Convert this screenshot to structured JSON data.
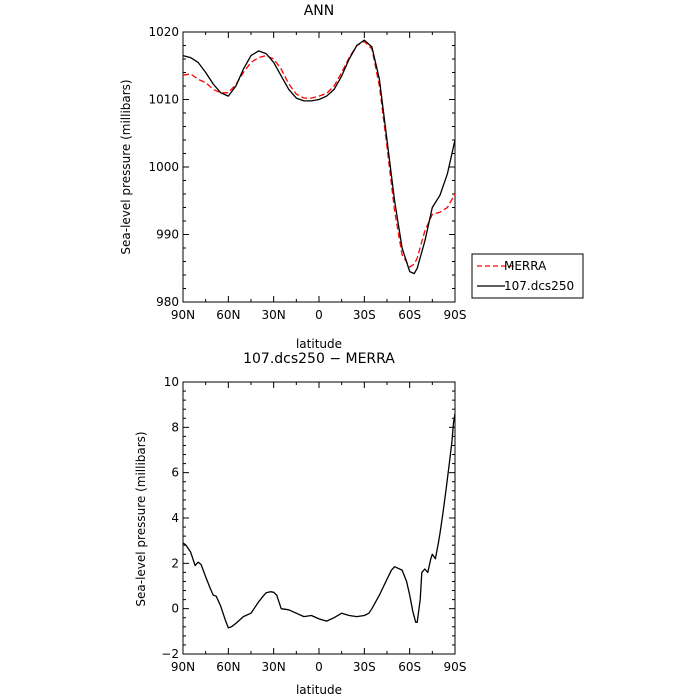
{
  "chart_data": [
    {
      "type": "line",
      "title": "ANN",
      "xlabel": "latitude",
      "ylabel": "Sea-level pressure (millibars)",
      "xlim": [
        90,
        -90
      ],
      "ylim": [
        980,
        1020
      ],
      "xtick_values": [
        90,
        60,
        30,
        0,
        -30,
        -60,
        -90
      ],
      "xtick_labels": [
        "90N",
        "60N",
        "30N",
        "0",
        "30S",
        "60S",
        "90S"
      ],
      "ytick_values": [
        980,
        990,
        1000,
        1010,
        1020
      ],
      "ytick_labels": [
        "980",
        "990",
        "1000",
        "1010",
        "1020"
      ],
      "grid": false,
      "legend_position": "right",
      "series": [
        {
          "name": "MERRA",
          "color": "#ff0000",
          "dash": "dashed",
          "x": [
            90,
            85,
            80,
            75,
            70,
            65,
            60,
            55,
            50,
            45,
            40,
            35,
            30,
            25,
            20,
            15,
            10,
            5,
            0,
            -5,
            -10,
            -15,
            -20,
            -25,
            -30,
            -35,
            -40,
            -45,
            -50,
            -55,
            -60,
            -63,
            -65,
            -70,
            -75,
            -80,
            -85,
            -90
          ],
          "y": [
            1013.6,
            1013.8,
            1013.0,
            1012.5,
            1011.5,
            1011.0,
            1011.0,
            1012.2,
            1014.0,
            1015.5,
            1016.2,
            1016.5,
            1016.0,
            1014.5,
            1012.3,
            1010.8,
            1010.2,
            1010.2,
            1010.5,
            1010.9,
            1012.0,
            1014.0,
            1016.2,
            1018.0,
            1018.6,
            1017.5,
            1012.0,
            1003.0,
            993.5,
            987.0,
            985.2,
            985.6,
            986.5,
            990.5,
            993.0,
            993.3,
            994.0,
            996.0
          ]
        },
        {
          "name": "107.dcs250",
          "color": "#000000",
          "dash": "solid",
          "x": [
            90,
            85,
            80,
            75,
            70,
            65,
            60,
            55,
            50,
            45,
            40,
            35,
            30,
            25,
            20,
            15,
            10,
            5,
            0,
            -5,
            -10,
            -15,
            -20,
            -25,
            -30,
            -35,
            -40,
            -45,
            -50,
            -55,
            -60,
            -63,
            -65,
            -70,
            -75,
            -80,
            -85,
            -90
          ],
          "y": [
            1016.5,
            1016.2,
            1015.5,
            1014.0,
            1012.3,
            1011.0,
            1010.5,
            1012.0,
            1014.5,
            1016.5,
            1017.2,
            1016.8,
            1015.5,
            1013.5,
            1011.5,
            1010.2,
            1009.8,
            1009.8,
            1010.0,
            1010.5,
            1011.5,
            1013.5,
            1016.0,
            1018.0,
            1018.8,
            1017.8,
            1013.0,
            1004.0,
            995.0,
            988.0,
            984.5,
            984.2,
            985.0,
            989.0,
            994.0,
            995.8,
            999.0,
            1004.0
          ]
        }
      ]
    },
    {
      "type": "line",
      "title": "107.dcs250 − MERRA",
      "xlabel": "latitude",
      "ylabel": "Sea-level pressure (millibars)",
      "xlim": [
        90,
        -90
      ],
      "ylim": [
        -2,
        10
      ],
      "xtick_values": [
        90,
        60,
        30,
        0,
        -30,
        -60,
        -90
      ],
      "xtick_labels": [
        "90N",
        "60N",
        "30N",
        "0",
        "30S",
        "60S",
        "90S"
      ],
      "ytick_values": [
        -2,
        0,
        2,
        4,
        6,
        8,
        10
      ],
      "ytick_labels": [
        "−2",
        "0",
        "2",
        "4",
        "6",
        "8",
        "10"
      ],
      "grid": false,
      "series": [
        {
          "color": "#000000",
          "dash": "solid",
          "x": [
            90,
            88,
            85,
            82,
            80,
            78,
            75,
            72,
            70,
            68,
            65,
            62,
            60,
            58,
            55,
            50,
            45,
            40,
            37,
            35,
            32,
            30,
            28,
            25,
            20,
            15,
            10,
            5,
            0,
            -5,
            -10,
            -15,
            -20,
            -25,
            -30,
            -33,
            -35,
            -40,
            -45,
            -48,
            -50,
            -55,
            -58,
            -60,
            -62,
            -64,
            -65,
            -67,
            -68,
            -70,
            -72,
            -74,
            -75,
            -77,
            -79,
            -80,
            -82,
            -84,
            -86,
            -88,
            -89,
            -90
          ],
          "y": [
            2.9,
            2.8,
            2.5,
            1.9,
            2.05,
            1.95,
            1.4,
            0.9,
            0.6,
            0.55,
            0.1,
            -0.5,
            -0.85,
            -0.8,
            -0.65,
            -0.35,
            -0.2,
            0.3,
            0.55,
            0.7,
            0.75,
            0.72,
            0.6,
            0.0,
            -0.05,
            -0.2,
            -0.35,
            -0.3,
            -0.45,
            -0.55,
            -0.4,
            -0.2,
            -0.3,
            -0.35,
            -0.3,
            -0.2,
            0.0,
            0.6,
            1.3,
            1.7,
            1.85,
            1.7,
            1.2,
            0.6,
            -0.1,
            -0.6,
            -0.6,
            0.4,
            1.6,
            1.75,
            1.6,
            2.2,
            2.4,
            2.2,
            2.9,
            3.3,
            4.2,
            5.2,
            6.3,
            7.4,
            8.2,
            8.6
          ]
        }
      ]
    }
  ],
  "legend": {
    "items": [
      {
        "label": "MERRA"
      },
      {
        "label": "107.dcs250"
      }
    ]
  }
}
